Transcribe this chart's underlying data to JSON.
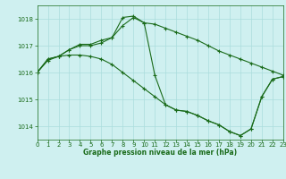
{
  "title": "Graphe pression niveau de la mer (hPa)",
  "bg_color": "#cff0f0",
  "grid_color": "#aadddd",
  "line_color": "#1a6b1a",
  "xlim": [
    0,
    23
  ],
  "ylim": [
    1013.5,
    1018.5
  ],
  "yticks": [
    1014,
    1015,
    1016,
    1017,
    1018
  ],
  "xticks": [
    0,
    1,
    2,
    3,
    4,
    5,
    6,
    7,
    8,
    9,
    10,
    11,
    12,
    13,
    14,
    15,
    16,
    17,
    18,
    19,
    20,
    21,
    22,
    23
  ],
  "series1_x": [
    0,
    1,
    2,
    3,
    4,
    5,
    6,
    7,
    8,
    9,
    10,
    11,
    12,
    13,
    14,
    15,
    16,
    17,
    18,
    19,
    20,
    21,
    22,
    23
  ],
  "series1_y": [
    1016.0,
    1016.5,
    1016.6,
    1016.85,
    1017.0,
    1017.0,
    1017.1,
    1017.3,
    1017.75,
    1018.05,
    1017.85,
    1017.8,
    1017.65,
    1017.5,
    1017.35,
    1017.2,
    1017.0,
    1016.8,
    1016.65,
    1016.5,
    1016.35,
    1016.2,
    1016.05,
    1015.9
  ],
  "series2_x": [
    0,
    1,
    2,
    3,
    4,
    5,
    6,
    7,
    8,
    9,
    10,
    11,
    12,
    13,
    14,
    15,
    16,
    17,
    18,
    19,
    20,
    21,
    22,
    23
  ],
  "series2_y": [
    1016.0,
    1016.5,
    1016.6,
    1016.85,
    1017.05,
    1017.05,
    1017.2,
    1017.3,
    1018.05,
    1018.1,
    1017.85,
    1015.9,
    1014.8,
    1014.6,
    1014.55,
    1014.4,
    1014.2,
    1014.05,
    1013.8,
    1013.65,
    1013.9,
    1015.1,
    1015.75,
    1015.85
  ],
  "series3_x": [
    0,
    1,
    2,
    3,
    4,
    5,
    6,
    7,
    8,
    9,
    10,
    11,
    12,
    13,
    14,
    15,
    16,
    17,
    18,
    19,
    20,
    21,
    22,
    23
  ],
  "series3_y": [
    1016.0,
    1016.45,
    1016.6,
    1016.65,
    1016.65,
    1016.6,
    1016.5,
    1016.3,
    1016.0,
    1015.7,
    1015.4,
    1015.1,
    1014.8,
    1014.6,
    1014.55,
    1014.4,
    1014.2,
    1014.05,
    1013.8,
    1013.65,
    1013.9,
    1015.1,
    1015.75,
    1015.85
  ],
  "tick_fontsize": 5.0,
  "label_fontsize": 5.5,
  "lw": 0.8,
  "ms": 3.0
}
